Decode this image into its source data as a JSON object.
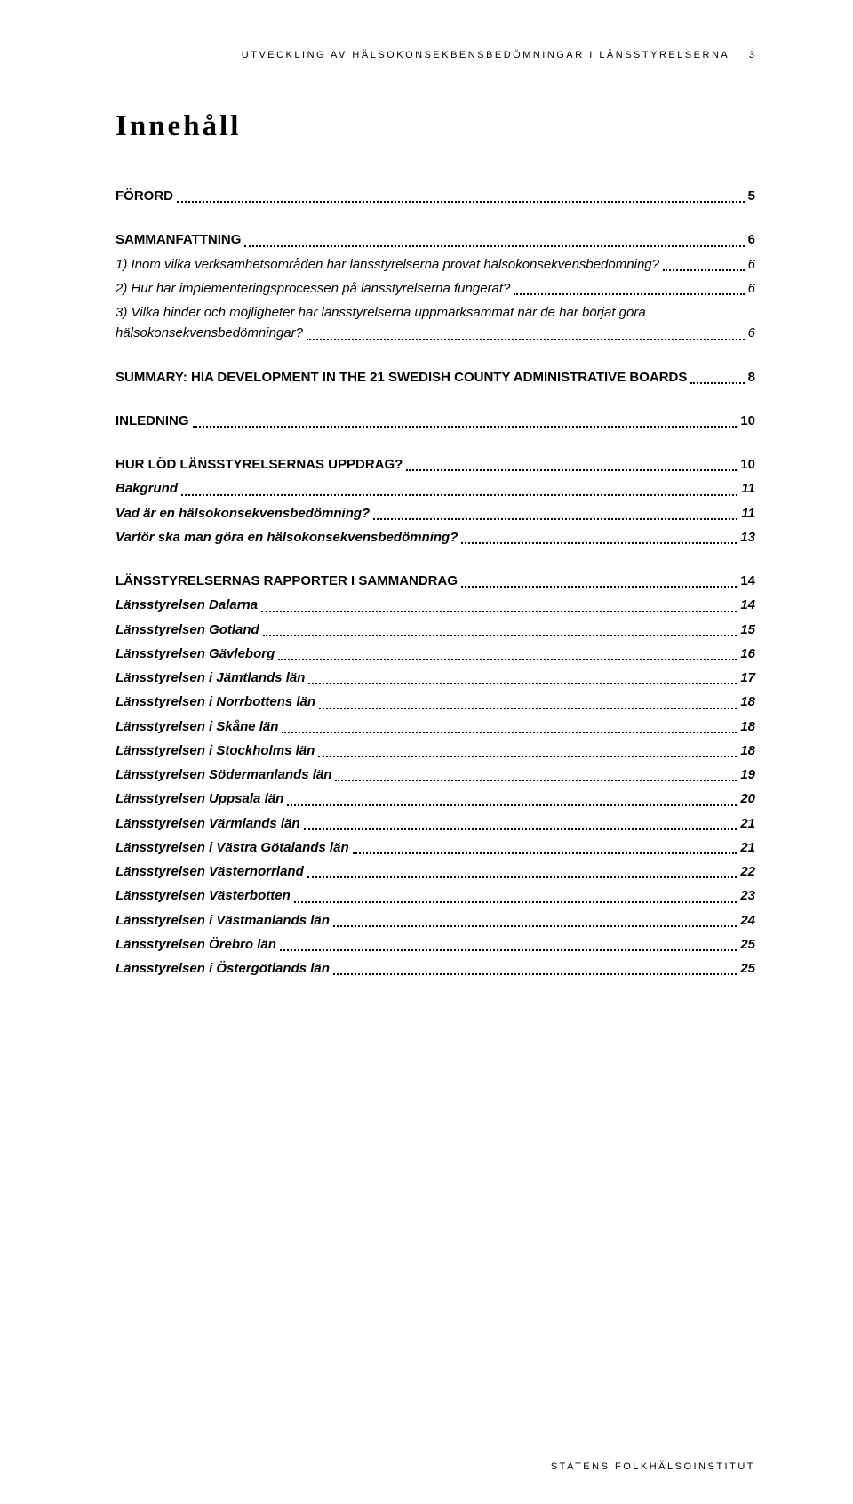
{
  "running_head": "UTVECKLING AV HÄLSOKONSEKBENSBEDÖMNINGAR I LÄNSSTYRELSERNA",
  "running_page": "3",
  "title": "Innehåll",
  "footer": "STATENS FOLKHÄLSOINSTITUT",
  "toc": [
    {
      "kind": "section",
      "label": "FÖRORD",
      "page": "5"
    },
    {
      "kind": "section",
      "label": "SAMMANFATTNING",
      "page": "6"
    },
    {
      "kind": "plain",
      "label": "1) Inom vilka verksamhetsområden har länsstyrelserna prövat hälsokonsekvensbedömning?",
      "page": "6"
    },
    {
      "kind": "plain",
      "label": "2) Hur har implementeringsprocessen på länsstyrelserna fungerat?",
      "page": "6"
    },
    {
      "kind": "plainwrap",
      "line1": "3) Vilka hinder och möjligheter har länsstyrelserna uppmärksammat när de har börjat göra",
      "line2": "hälsokonsekvensbedömningar?",
      "page": "6"
    },
    {
      "kind": "section",
      "label": "SUMMARY: HIA DEVELOPMENT IN THE 21 SWEDISH COUNTY ADMINISTRATIVE BOARDS",
      "page": "8"
    },
    {
      "kind": "section",
      "label": "INLEDNING",
      "page": "10"
    },
    {
      "kind": "section",
      "label": "HUR LÖD LÄNSSTYRELSERNAS UPPDRAG?",
      "page": "10"
    },
    {
      "kind": "sub",
      "label": "Bakgrund",
      "page": "11"
    },
    {
      "kind": "sub",
      "label": "Vad är en hälsokonsekvensbedömning?",
      "page": "11"
    },
    {
      "kind": "sub",
      "label": "Varför ska man göra en hälsokonsekvensbedömning?",
      "page": "13"
    },
    {
      "kind": "section",
      "label": "LÄNSSTYRELSERNAS RAPPORTER I SAMMANDRAG",
      "page": "14"
    },
    {
      "kind": "sub",
      "label": "Länsstyrelsen Dalarna",
      "page": "14"
    },
    {
      "kind": "sub",
      "label": "Länsstyrelsen Gotland",
      "page": "15"
    },
    {
      "kind": "sub",
      "label": "Länsstyrelsen Gävleborg",
      "page": "16"
    },
    {
      "kind": "sub",
      "label": "Länsstyrelsen i Jämtlands län",
      "page": "17"
    },
    {
      "kind": "sub",
      "label": "Länsstyrelsen i Norrbottens län",
      "page": "18"
    },
    {
      "kind": "sub",
      "label": "Länsstyrelsen i Skåne län",
      "page": "18"
    },
    {
      "kind": "sub",
      "label": "Länsstyrelsen i Stockholms län",
      "page": "18"
    },
    {
      "kind": "sub",
      "label": "Länsstyrelsen Södermanlands län",
      "page": "19"
    },
    {
      "kind": "sub",
      "label": "Länsstyrelsen Uppsala län",
      "page": "20"
    },
    {
      "kind": "sub",
      "label": "Länsstyrelsen Värmlands län",
      "page": "21"
    },
    {
      "kind": "sub",
      "label": "Länsstyrelsen i Västra Götalands län",
      "page": "21"
    },
    {
      "kind": "sub",
      "label": "Länsstyrelsen Västernorrland",
      "page": "22"
    },
    {
      "kind": "sub",
      "label": "Länsstyrelsen Västerbotten",
      "page": "23"
    },
    {
      "kind": "sub",
      "label": "Länsstyrelsen i Västmanlands län",
      "page": "24"
    },
    {
      "kind": "sub",
      "label": "Länsstyrelsen Örebro län",
      "page": "25"
    },
    {
      "kind": "sub",
      "label": "Länsstyrelsen i Östergötlands län",
      "page": "25"
    }
  ]
}
